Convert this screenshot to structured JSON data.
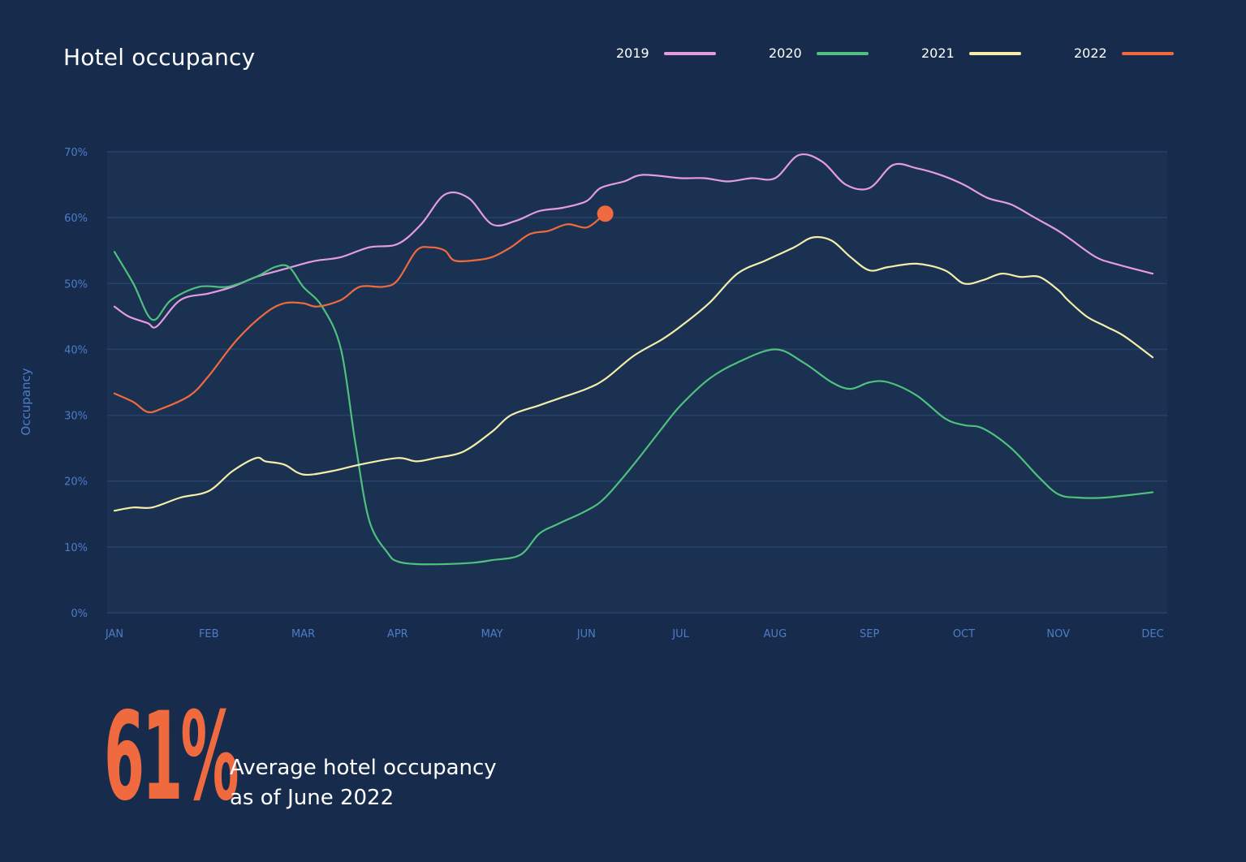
{
  "header": {
    "title": "Hotel occupancy"
  },
  "summary": {
    "value": "61%",
    "caption_line1": "Average hotel occupancy",
    "caption_line2": "as of June 2022"
  },
  "colors": {
    "background": "#172c4d",
    "plot_background": "#1a3152",
    "grid": "#27426a",
    "axis_text": "#4d7cc7",
    "accent": "#f06a3f"
  },
  "chart_data": {
    "type": "line",
    "title": "Hotel occupancy",
    "xlabel": "",
    "ylabel": "Occupancy",
    "x_ticks": [
      "JAN",
      "FEB",
      "MAR",
      "APR",
      "MAY",
      "JUN",
      "JUL",
      "AUG",
      "SEP",
      "OCT",
      "NOV",
      "DEC"
    ],
    "y_ticks": [
      "0%",
      "10%",
      "20%",
      "30%",
      "40%",
      "50%",
      "60%",
      "70%"
    ],
    "ylim": [
      0,
      70
    ],
    "xlim": [
      0,
      11
    ],
    "grid": true,
    "legend_position": "top-right",
    "series": [
      {
        "name": "2019",
        "color": "#e59be0",
        "x": [
          0,
          0.15,
          0.35,
          0.45,
          0.7,
          1.0,
          1.25,
          1.5,
          1.75,
          2.0,
          2.15,
          2.4,
          2.7,
          3.0,
          3.25,
          3.5,
          3.75,
          4.0,
          4.25,
          4.5,
          4.75,
          5.0,
          5.15,
          5.4,
          5.6,
          6.0,
          6.25,
          6.5,
          6.75,
          7.0,
          7.25,
          7.5,
          7.75,
          8.0,
          8.25,
          8.5,
          8.75,
          9.0,
          9.25,
          9.5,
          9.75,
          10.0,
          10.15,
          10.4,
          10.6,
          11.0
        ],
        "y": [
          46.5,
          45.0,
          44.0,
          43.5,
          47.5,
          48.5,
          49.5,
          51.0,
          52.0,
          53.0,
          53.5,
          54.0,
          55.5,
          56.0,
          59.0,
          63.5,
          63.0,
          59.0,
          59.5,
          61.0,
          61.5,
          62.5,
          64.5,
          65.5,
          66.5,
          66.0,
          66.0,
          65.5,
          66.0,
          66.0,
          69.5,
          68.5,
          65.0,
          64.5,
          68.0,
          67.5,
          66.5,
          65.0,
          63.0,
          62.0,
          60.0,
          58.0,
          56.5,
          54.0,
          53.0,
          51.5
        ]
      },
      {
        "name": "2020",
        "color": "#4fc07e",
        "x": [
          0,
          0.2,
          0.4,
          0.6,
          0.9,
          1.2,
          1.5,
          1.7,
          1.85,
          2.0,
          2.2,
          2.4,
          2.55,
          2.7,
          2.9,
          3.0,
          3.2,
          3.5,
          3.8,
          4.0,
          4.3,
          4.5,
          4.7,
          5.0,
          5.2,
          5.5,
          5.8,
          6.0,
          6.3,
          6.6,
          7.0,
          7.3,
          7.6,
          7.8,
          8.0,
          8.2,
          8.5,
          8.8,
          9.0,
          9.2,
          9.5,
          9.8,
          10.0,
          10.2,
          10.5,
          11.0
        ],
        "y": [
          54.8,
          50.0,
          44.5,
          47.5,
          49.5,
          49.5,
          51.0,
          52.5,
          52.5,
          49.5,
          46.5,
          40.0,
          26.0,
          14.0,
          9.0,
          7.8,
          7.4,
          7.4,
          7.6,
          8.0,
          8.8,
          12.0,
          13.5,
          15.5,
          17.5,
          22.5,
          28.0,
          31.5,
          35.5,
          38.0,
          40.0,
          38.0,
          35.0,
          34.0,
          35.0,
          35.0,
          33.0,
          29.5,
          28.5,
          28.0,
          25.0,
          20.5,
          18.0,
          17.5,
          17.5,
          18.3
        ]
      },
      {
        "name": "2021",
        "color": "#f4eeaa",
        "x": [
          0,
          0.2,
          0.4,
          0.7,
          1.0,
          1.25,
          1.5,
          1.6,
          1.8,
          2.0,
          2.3,
          2.6,
          3.0,
          3.2,
          3.4,
          3.7,
          4.0,
          4.2,
          4.5,
          4.7,
          5.0,
          5.2,
          5.5,
          5.8,
          6.0,
          6.3,
          6.6,
          6.9,
          7.2,
          7.4,
          7.6,
          7.8,
          8.0,
          8.2,
          8.5,
          8.8,
          9.0,
          9.2,
          9.4,
          9.6,
          9.8,
          10.0,
          10.1,
          10.3,
          10.5,
          10.7,
          11.0
        ],
        "y": [
          15.5,
          16.0,
          16.0,
          17.5,
          18.5,
          21.5,
          23.5,
          23.0,
          22.5,
          21.0,
          21.5,
          22.5,
          23.5,
          23.0,
          23.5,
          24.5,
          27.5,
          30.0,
          31.5,
          32.5,
          34.0,
          35.5,
          39.0,
          41.5,
          43.5,
          47.0,
          51.5,
          53.5,
          55.5,
          57.0,
          56.5,
          54.0,
          52.0,
          52.5,
          53.0,
          52.0,
          50.0,
          50.5,
          51.5,
          51.0,
          51.0,
          49.0,
          47.5,
          45.0,
          43.5,
          42.0,
          38.8
        ]
      },
      {
        "name": "2022",
        "color": "#f06a3f",
        "x": [
          0,
          0.2,
          0.35,
          0.5,
          0.8,
          1.0,
          1.3,
          1.6,
          1.8,
          2.0,
          2.15,
          2.4,
          2.6,
          2.85,
          3.0,
          3.2,
          3.35,
          3.5,
          3.6,
          3.8,
          4.0,
          4.2,
          4.4,
          4.6,
          4.8,
          5.0,
          5.15
        ],
        "y": [
          33.3,
          32.0,
          30.5,
          31.0,
          33.0,
          36.0,
          41.5,
          45.5,
          47.0,
          47.0,
          46.5,
          47.5,
          49.5,
          49.5,
          50.5,
          55.0,
          55.5,
          55.0,
          53.5,
          53.5,
          54.0,
          55.5,
          57.5,
          58.0,
          59.0,
          58.5,
          60.0
        ]
      }
    ],
    "marker": {
      "series": "2022",
      "x": 5.2,
      "y": 60.6
    }
  }
}
